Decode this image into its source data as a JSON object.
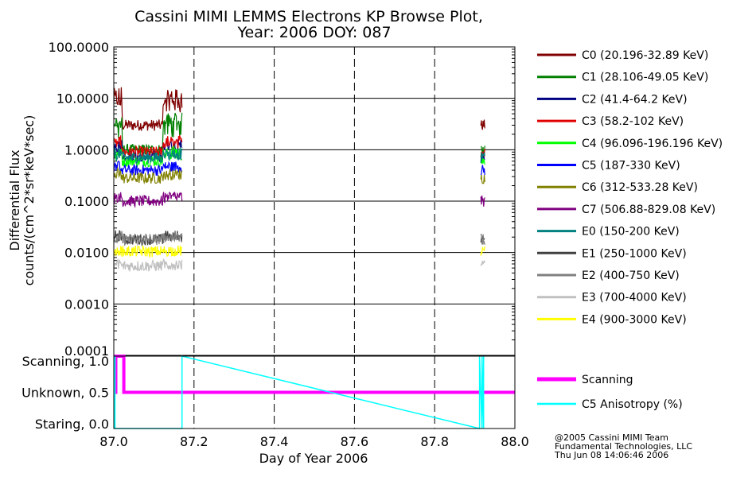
{
  "title": [
    "Cassini MIMI LEMMS Electrons KP Browse Plot,",
    "Year: 2006 DOY: 087"
  ],
  "credits": [
    "@2005 Cassini MIMI Team",
    "Fundamental Technologies, LLC",
    "Thu Jun 08 14:06:46 2006"
  ],
  "chart_data": [
    {
      "panel": "flux",
      "type": "line",
      "ylabel": [
        "Differential Flux",
        "counts/(cm^2*sr*keV*sec)"
      ],
      "yscale": "log",
      "ylim": [
        0.0001,
        100
      ],
      "yticks": [
        "100.0000",
        "10.0000",
        "1.0000",
        "0.1000",
        "0.0100",
        "0.0010",
        "0.0001"
      ],
      "xlim": [
        87.0,
        88.0
      ],
      "grid": true,
      "legend_position": "right",
      "data_intervals": [
        [
          87.0,
          87.17
        ],
        [
          87.915,
          87.925
        ]
      ],
      "series": [
        {
          "name": "C0 (20.196-32.89 KeV)",
          "color": "#800000",
          "typical": 3.0,
          "peak": 15.0
        },
        {
          "name": "C1 (28.106-49.05 KeV)",
          "color": "#008000",
          "typical": 1.0,
          "peak": 5.0
        },
        {
          "name": "C2 (41.4-64.2 KeV)",
          "color": "#000080",
          "typical": 0.75,
          "peak": 1.5
        },
        {
          "name": "C3 (58.2-102 KeV)",
          "color": "#e00000",
          "typical": 0.9,
          "peak": 1.6
        },
        {
          "name": "C4 (96.096-196.196 KeV)",
          "color": "#00ff00",
          "typical": 0.6,
          "peak": 1.0
        },
        {
          "name": "C5 (187-330 KeV)",
          "color": "#0000ff",
          "typical": 0.4,
          "peak": 0.5
        },
        {
          "name": "C6 (312-533.28 KeV)",
          "color": "#808000",
          "typical": 0.28,
          "peak": 0.35
        },
        {
          "name": "C7 (506.88-829.08 KeV)",
          "color": "#800080",
          "typical": 0.1,
          "peak": 0.13
        },
        {
          "name": "E0 (150-200 KeV)",
          "color": "#008080",
          "typical": 0.7,
          "peak": 0.9
        },
        {
          "name": "E1 (250-1000 KeV)",
          "color": "#404040",
          "typical": 0.018,
          "peak": 0.022
        },
        {
          "name": "E2 (400-750 KeV)",
          "color": "#808080",
          "typical": 0.018,
          "peak": 0.021
        },
        {
          "name": "E3 (700-4000 KeV)",
          "color": "#c0c0c0",
          "typical": 0.0055,
          "peak": 0.006
        },
        {
          "name": "E4 (900-3000 KeV)",
          "color": "#ffff00",
          "typical": 0.0105,
          "peak": 0.011
        }
      ]
    },
    {
      "panel": "mode",
      "type": "line",
      "xlabel": "Day of Year 2006",
      "xticks": [
        "87.0",
        "87.2",
        "87.4",
        "87.6",
        "87.8",
        "88.0"
      ],
      "ytick_labels": [
        "Scanning, 1.0",
        "Unknown, 0.5",
        "Staring, 0.0"
      ],
      "ylim": [
        0.0,
        1.0
      ],
      "xlim": [
        87.0,
        88.0
      ],
      "legend_position": "right",
      "series": [
        {
          "name": "Scanning",
          "color": "#ff00ff",
          "x": [
            87.0,
            87.005,
            87.005,
            87.025,
            87.025,
            88.0
          ],
          "y": [
            0.5,
            0.5,
            1.0,
            1.0,
            0.5,
            0.5
          ]
        },
        {
          "name": "C5 Anisotropy (%)",
          "color": "#00ffff",
          "x": [
            87.002,
            87.002,
            87.003,
            87.003,
            87.17,
            87.17,
            87.912,
            87.912,
            87.918,
            87.918,
            87.922,
            87.922
          ],
          "y": [
            0.0,
            1.0,
            1.0,
            0.0,
            0.0,
            1.0,
            0.0,
            1.0,
            0.0,
            1.0,
            0.0,
            1.0
          ]
        }
      ]
    }
  ]
}
